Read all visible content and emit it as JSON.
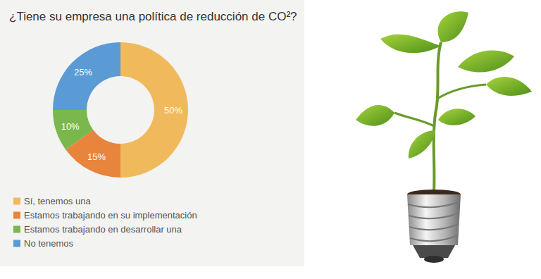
{
  "chart_data": {
    "type": "pie",
    "title": "¿Tiene su empresa una política de reducción de CO²?",
    "categories": [
      "Sí, tenemos una",
      "Estamos trabajando en su implementación",
      "Estamos trabajando en desarrollar una",
      "No tenemos"
    ],
    "values": [
      50,
      15,
      10,
      25
    ],
    "value_labels": [
      "50%",
      "15%",
      "10%",
      "25%"
    ],
    "colors": [
      "#f0b95c",
      "#e8843c",
      "#7ab84e",
      "#5b9bd5"
    ],
    "data_labels": true,
    "legend": "bottom-left"
  }
}
